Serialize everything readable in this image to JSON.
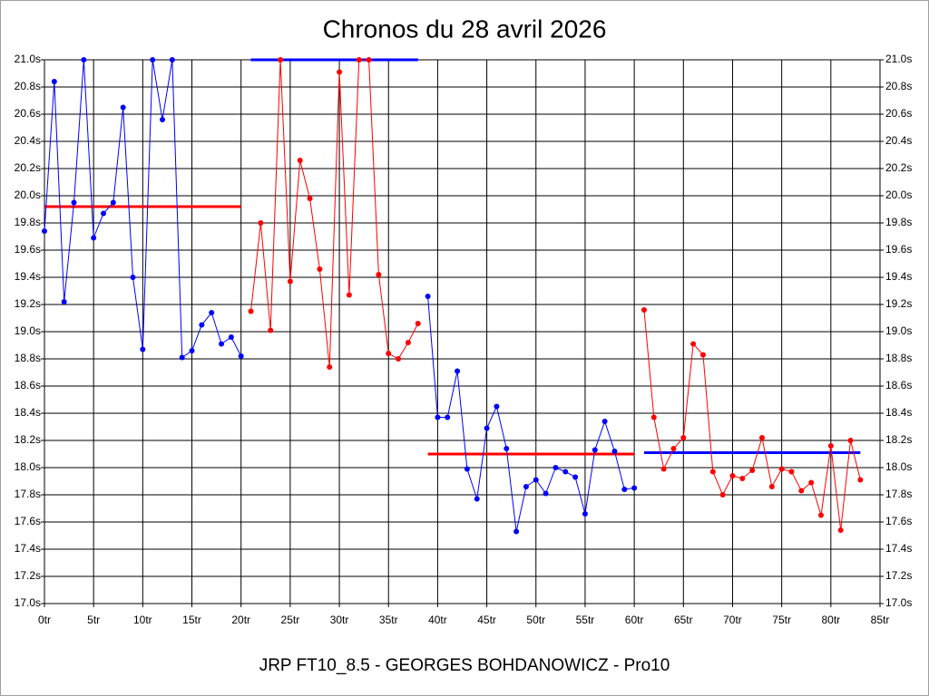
{
  "chart_data": {
    "type": "line",
    "title": "Chronos du 28 avril 2026",
    "xlabel": "JRP FT10_8.5 - GEORGES BOHDANOWICZ - Pro10",
    "grid": true,
    "xlim": [
      0,
      85
    ],
    "ylim": [
      17.0,
      21.0
    ],
    "xticks": [
      {
        "value": 0,
        "label": "0tr"
      },
      {
        "value": 5,
        "label": "5tr"
      },
      {
        "value": 10,
        "label": "10tr"
      },
      {
        "value": 15,
        "label": "15tr"
      },
      {
        "value": 20,
        "label": "20tr"
      },
      {
        "value": 25,
        "label": "25tr"
      },
      {
        "value": 30,
        "label": "30tr"
      },
      {
        "value": 35,
        "label": "35tr"
      },
      {
        "value": 40,
        "label": "40tr"
      },
      {
        "value": 45,
        "label": "45tr"
      },
      {
        "value": 50,
        "label": "50tr"
      },
      {
        "value": 55,
        "label": "55tr"
      },
      {
        "value": 60,
        "label": "60tr"
      },
      {
        "value": 65,
        "label": "65tr"
      },
      {
        "value": 70,
        "label": "70tr"
      },
      {
        "value": 75,
        "label": "75tr"
      },
      {
        "value": 80,
        "label": "80tr"
      },
      {
        "value": 85,
        "label": "85tr"
      }
    ],
    "yticks": [
      {
        "value": 17.0,
        "label": "17.0s"
      },
      {
        "value": 17.2,
        "label": "17.2s"
      },
      {
        "value": 17.4,
        "label": "17.4s"
      },
      {
        "value": 17.6,
        "label": "17.6s"
      },
      {
        "value": 17.8,
        "label": "17.8s"
      },
      {
        "value": 18.0,
        "label": "18.0s"
      },
      {
        "value": 18.2,
        "label": "18.2s"
      },
      {
        "value": 18.4,
        "label": "18.4s"
      },
      {
        "value": 18.6,
        "label": "18.6s"
      },
      {
        "value": 18.8,
        "label": "18.8s"
      },
      {
        "value": 19.0,
        "label": "19.0s"
      },
      {
        "value": 19.2,
        "label": "19.2s"
      },
      {
        "value": 19.4,
        "label": "19.4s"
      },
      {
        "value": 19.6,
        "label": "19.6s"
      },
      {
        "value": 19.8,
        "label": "19.8s"
      },
      {
        "value": 20.0,
        "label": "20.0s"
      },
      {
        "value": 20.2,
        "label": "20.2s"
      },
      {
        "value": 20.4,
        "label": "20.4s"
      },
      {
        "value": 20.6,
        "label": "20.6s"
      },
      {
        "value": 20.8,
        "label": "20.8s"
      },
      {
        "value": 21.0,
        "label": "21.0s"
      }
    ],
    "series": [
      {
        "color": "#0000ff",
        "x": [
          0,
          1,
          2,
          3,
          4,
          5,
          6,
          7,
          8,
          9,
          10,
          11,
          12,
          13,
          14,
          15,
          16,
          17,
          18,
          19,
          20
        ],
        "values": [
          19.74,
          20.84,
          19.22,
          19.95,
          21.0,
          19.69,
          19.87,
          19.95,
          20.65,
          19.4,
          18.87,
          21.0,
          20.56,
          21.0,
          18.81,
          18.86,
          19.05,
          19.14,
          18.91,
          18.96,
          18.82
        ]
      },
      {
        "color": "#ff0000",
        "x": [
          21,
          22,
          23,
          24,
          25,
          26,
          27,
          28,
          29,
          30,
          31,
          32,
          33,
          34,
          35,
          36,
          37,
          38
        ],
        "values": [
          19.15,
          19.8,
          19.01,
          21.0,
          19.37,
          20.26,
          19.98,
          19.46,
          18.74,
          20.91,
          19.27,
          21.0,
          21.0,
          19.42,
          18.84,
          18.8,
          18.92,
          19.06
        ]
      },
      {
        "color": "#0000ff",
        "x": [
          39,
          40,
          41,
          42,
          43,
          44,
          45,
          46,
          47,
          48,
          49,
          50,
          51,
          52,
          53,
          54,
          55,
          56,
          57,
          58,
          59,
          60
        ],
        "values": [
          19.26,
          18.37,
          18.37,
          18.71,
          17.99,
          17.77,
          18.29,
          18.45,
          18.14,
          17.53,
          17.86,
          17.91,
          17.81,
          18.0,
          17.97,
          17.93,
          17.66,
          18.13,
          18.34,
          18.12,
          17.84,
          17.85
        ]
      },
      {
        "color": "#ff0000",
        "x": [
          61,
          62,
          63,
          64,
          65,
          66,
          67,
          68,
          69,
          70,
          71,
          72,
          73,
          74,
          75,
          76,
          77,
          78,
          79,
          80,
          81,
          82,
          83
        ],
        "values": [
          19.16,
          18.37,
          17.99,
          18.14,
          18.22,
          18.91,
          18.83,
          17.97,
          17.8,
          17.94,
          17.92,
          17.98,
          18.22,
          17.86,
          17.99,
          17.97,
          17.83,
          17.89,
          17.65,
          18.16,
          17.54,
          18.2,
          17.91
        ]
      }
    ],
    "averages": [
      {
        "color": "#ff0000",
        "x_start": 0,
        "x_end": 20,
        "value": 19.92
      },
      {
        "color": "#0000ff",
        "x_start": 21,
        "x_end": 38,
        "value": 21.0
      },
      {
        "color": "#ff0000",
        "x_start": 39,
        "x_end": 60,
        "value": 18.1
      },
      {
        "color": "#0000ff",
        "x_start": 61,
        "x_end": 83,
        "value": 18.11
      }
    ]
  }
}
